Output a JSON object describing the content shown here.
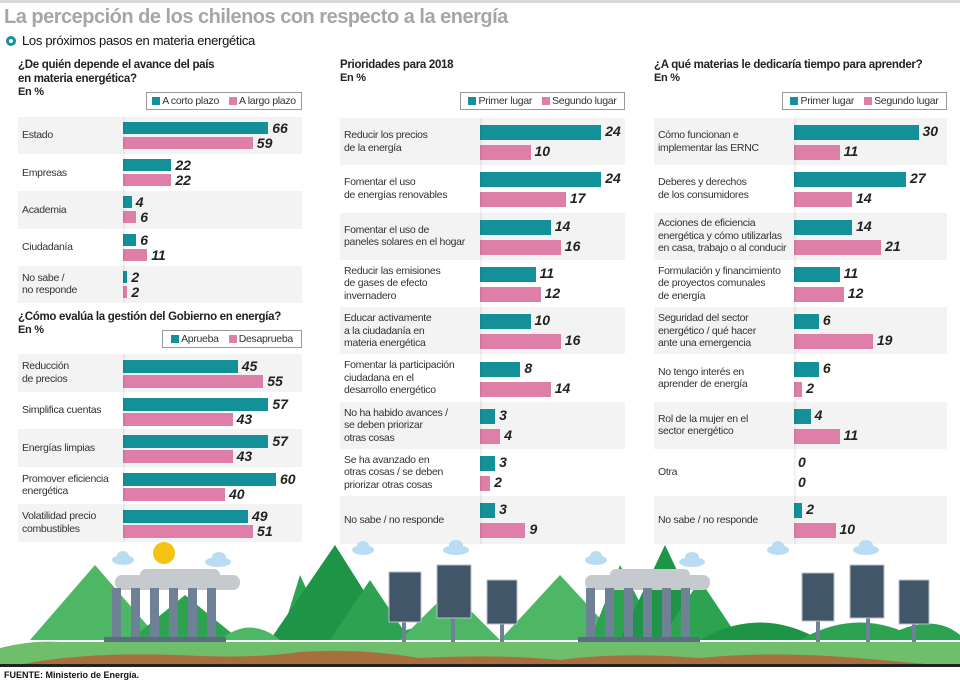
{
  "header": {
    "title": "La percepción de los chilenos con respecto a la energía",
    "subtitle": "Los próximos pasos en materia energética"
  },
  "colors": {
    "teal": "#149098",
    "pink": "#dd7fa8",
    "row_gray": "#f3f3f3",
    "title_gray": "#a6a6a6"
  },
  "chart_data": [
    {
      "id": "avance",
      "type": "bar",
      "orientation": "horizontal",
      "title": "¿De quién depende el avance del país en materia energética?",
      "title_lines": [
        "¿De quién depende el avance del país",
        "en materia energética?"
      ],
      "unit": "En %",
      "categories": [
        "Estado",
        "Empresas",
        "Academia",
        "Ciudadanía",
        "No sabe / no responde"
      ],
      "category_lines": [
        [
          "Estado"
        ],
        [
          "Empresas"
        ],
        [
          "Academia"
        ],
        [
          "Ciudadanía"
        ],
        [
          "No sabe /",
          "no responde"
        ]
      ],
      "series": [
        {
          "name": "A corto plazo",
          "color": "#149098",
          "values": [
            66,
            22,
            4,
            6,
            2
          ]
        },
        {
          "name": "A largo plazo",
          "color": "#dd7fa8",
          "values": [
            59,
            22,
            6,
            11,
            2
          ]
        }
      ],
      "legend": "top-right"
    },
    {
      "id": "gestion",
      "type": "bar",
      "orientation": "horizontal",
      "title": "¿Cómo evalúa la gestión del Gobierno en energía?",
      "title_lines": [
        "¿Cómo evalúa la gestión del Gobierno en energía?"
      ],
      "unit": "En %",
      "categories": [
        "Reducción de precios",
        "Simplifica cuentas",
        "Energías limpias",
        "Promover eficiencia energética",
        "Volatilidad precio combustibles"
      ],
      "category_lines": [
        [
          "Reducción",
          "de precios"
        ],
        [
          "Simplifica cuentas"
        ],
        [
          "Energías limpias"
        ],
        [
          "Promover eficiencia",
          "energética"
        ],
        [
          "Volatilidad precio",
          "combustibles"
        ]
      ],
      "series": [
        {
          "name": "Aprueba",
          "color": "#149098",
          "values": [
            45,
            57,
            57,
            60,
            49
          ]
        },
        {
          "name": "Desaprueba",
          "color": "#dd7fa8",
          "values": [
            55,
            43,
            43,
            40,
            51
          ]
        }
      ],
      "legend": "top-right"
    },
    {
      "id": "prioridades",
      "type": "bar",
      "orientation": "horizontal",
      "title": "Prioridades para 2018",
      "title_lines": [
        "Prioridades para 2018"
      ],
      "unit": "En %",
      "categories": [
        "Reducir los precios de la energía",
        "Fomentar el uso de energías renovables",
        "Fomentar el uso de paneles solares en el hogar",
        "Reducir las emisiones de gases de efecto invernadero",
        "Educar activamente a la ciudadanía en materia energética",
        "Fomentar la participación ciudadana en el desarrollo energético",
        "No ha habido avances / se deben priorizar otras cosas",
        "Se ha avanzado en otras cosas / se deben priorizar otras cosas",
        "No sabe / no responde"
      ],
      "category_lines": [
        [
          "Reducir los precios",
          "de la energía"
        ],
        [
          "Fomentar el uso",
          "de energías renovables"
        ],
        [
          "Fomentar el uso de",
          "paneles solares en el hogar"
        ],
        [
          "Reducir las emisiones",
          "de gases de efecto",
          "invernadero"
        ],
        [
          "Educar activamente",
          "a la ciudadanía en",
          "materia energética"
        ],
        [
          "Fomentar la participación",
          "ciudadana en el",
          "desarrollo energético"
        ],
        [
          "No ha habido avances /",
          "se deben priorizar",
          "otras cosas"
        ],
        [
          "Se ha avanzado en",
          "otras cosas / se deben",
          "priorizar otras cosas"
        ],
        [
          "No sabe / no responde"
        ]
      ],
      "series": [
        {
          "name": "Primer lugar",
          "color": "#149098",
          "values": [
            24,
            24,
            14,
            11,
            10,
            8,
            3,
            3,
            3
          ]
        },
        {
          "name": "Segundo lugar",
          "color": "#dd7fa8",
          "values": [
            10,
            17,
            16,
            12,
            16,
            14,
            4,
            2,
            9
          ]
        }
      ],
      "legend": "top-right"
    },
    {
      "id": "aprender",
      "type": "bar",
      "orientation": "horizontal",
      "title": "¿A qué materias le dedicaría tiempo para aprender?",
      "title_lines": [
        "¿A qué materias le dedicaría tiempo para aprender?"
      ],
      "unit": "En %",
      "categories": [
        "Cómo funcionan e implementar las ERNC",
        "Deberes y derechos de los consumidores",
        "Acciones de eficiencia energética y cómo utilizarlas en casa, trabajo o al conducir",
        "Formulación y financimiento de proyectos comunales de energía",
        "Seguridad del sector energético / qué hacer ante una emergencia",
        "No tengo interés en aprender de energía",
        "Rol de la mujer en el sector energético",
        "Otra",
        "No sabe / no responde"
      ],
      "category_lines": [
        [
          "Cómo funcionan e",
          "implementar las ERNC"
        ],
        [
          "Deberes y derechos",
          "de los consumidores"
        ],
        [
          "Acciones de eficiencia",
          "energética y cómo utilizarlas",
          "en casa, trabajo o al conducir"
        ],
        [
          "Formulación y financimiento",
          "de proyectos comunales",
          "de energía"
        ],
        [
          "Seguridad del sector",
          "energético / qué hacer",
          "ante una emergencia"
        ],
        [
          "No tengo interés en",
          "aprender de energía"
        ],
        [
          "Rol de la mujer en el",
          "sector energético"
        ],
        [
          "Otra"
        ],
        [
          "No sabe / no responde"
        ]
      ],
      "series": [
        {
          "name": "Primer lugar",
          "color": "#149098",
          "values": [
            30,
            27,
            14,
            11,
            6,
            6,
            4,
            0,
            2
          ]
        },
        {
          "name": "Segundo lugar",
          "color": "#dd7fa8",
          "values": [
            11,
            14,
            21,
            12,
            19,
            2,
            11,
            0,
            10
          ]
        }
      ],
      "legend": "top-right"
    }
  ],
  "footer": {
    "source": "FUENTE: Ministerio de Energía."
  },
  "illustration": {
    "description": "Landscape with power plant, mountains and solar panels",
    "icons": [
      "sun-icon",
      "cloud-icon",
      "power-plant-icon",
      "solar-panel-icon",
      "mountain-icon"
    ]
  }
}
